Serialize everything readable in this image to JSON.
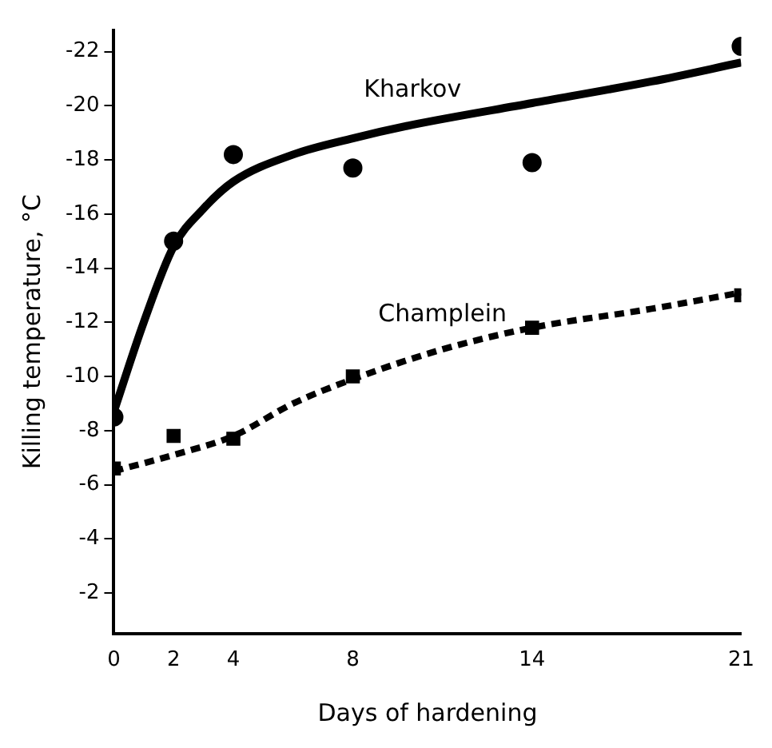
{
  "chart_data": {
    "type": "line",
    "xlabel": "Days of hardening",
    "ylabel": "Killing temperature, °C",
    "xlim": [
      0,
      21
    ],
    "xticks": [
      0,
      2,
      4,
      8,
      14,
      21
    ],
    "ylim": [
      -0.5,
      -22.8
    ],
    "yticks": [
      -2,
      -4,
      -6,
      -8,
      -10,
      -12,
      -14,
      -16,
      -18,
      -20,
      -22
    ],
    "grid": false,
    "legend": false,
    "series": [
      {
        "name": "Kharkov",
        "color": "#000000",
        "marker": "none",
        "line_style": "solid",
        "x": [
          0,
          1,
          2,
          3,
          4,
          6,
          8,
          10,
          14,
          18,
          21
        ],
        "values": [
          -8.7,
          -12,
          -14.8,
          -16.2,
          -17.2,
          -18.2,
          -18.8,
          -19.3,
          -20.1,
          -20.9,
          -21.6
        ]
      },
      {
        "type": "scatter",
        "color": "#000000",
        "marker": "circle",
        "x": [
          0,
          2,
          4,
          8,
          14,
          21
        ],
        "values": [
          -8.5,
          -15,
          -18.2,
          -17.7,
          -17.9,
          -22.2
        ]
      },
      {
        "name": "Champlein",
        "color": "#000000",
        "marker": "none",
        "line_style": "dashed",
        "x": [
          0,
          2,
          4,
          6,
          8,
          11,
          14,
          18,
          21
        ],
        "values": [
          -6.5,
          -7.1,
          -7.8,
          -9,
          -9.9,
          -11,
          -11.8,
          -12.5,
          -13.1
        ]
      },
      {
        "type": "scatter",
        "color": "#000000",
        "marker": "square",
        "x": [
          0,
          2,
          4,
          8,
          14,
          21
        ],
        "values": [
          -6.6,
          -7.8,
          -7.7,
          -10,
          -11.8,
          -13
        ]
      }
    ]
  }
}
